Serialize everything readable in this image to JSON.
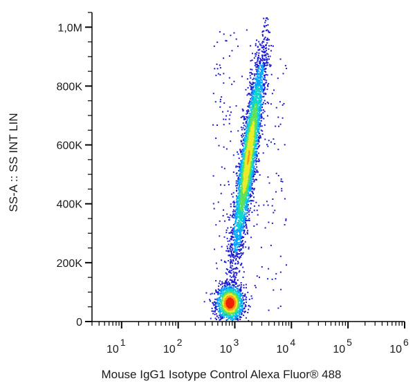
{
  "chart_data": {
    "type": "scatter",
    "subtype": "flow-cytometry-density-dot-plot",
    "xlabel": "Mouse IgG1 Isotype Control Alexa Fluor® 488",
    "ylabel": "SS-A :: SS INT LIN",
    "x_scale": "log",
    "y_scale": "linear",
    "xlim": [
      3,
      1000000
    ],
    "ylim": [
      0,
      1050000
    ],
    "x_ticks": [
      {
        "base": "10",
        "exp": "1",
        "value": 10
      },
      {
        "base": "10",
        "exp": "2",
        "value": 100
      },
      {
        "base": "10",
        "exp": "3",
        "value": 1000
      },
      {
        "base": "10",
        "exp": "4",
        "value": 10000
      },
      {
        "base": "10",
        "exp": "5",
        "value": 100000
      },
      {
        "base": "10",
        "exp": "6",
        "value": 1000000
      }
    ],
    "y_ticks": [
      {
        "label": "0",
        "value": 0
      },
      {
        "label": "200K",
        "value": 200000
      },
      {
        "label": "400K",
        "value": 400000
      },
      {
        "label": "600K",
        "value": 600000
      },
      {
        "label": "800K",
        "value": 800000
      },
      {
        "label": "1,0M",
        "value": 1000000
      }
    ],
    "grid": false,
    "legend": "none",
    "colormap": [
      "#1a1ad0",
      "#00a6ff",
      "#12d6c8",
      "#5fe05a",
      "#e8ec2a",
      "#ff9a10",
      "#f0200a"
    ],
    "populations": [
      {
        "x_center": 800,
        "y_center": 65000,
        "x_spread_log": 0.12,
        "y_spread": 30000,
        "count": 1400
      },
      {
        "x_center": 1700,
        "y_center": 560000,
        "x_spread_log": 0.07,
        "y_spread": 180000,
        "count": 3600
      }
    ]
  }
}
